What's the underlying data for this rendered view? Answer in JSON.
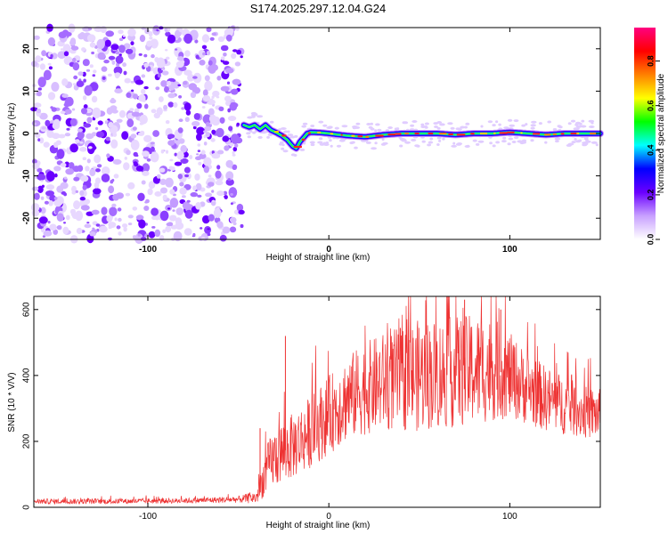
{
  "title": "S174.2025.297.12.04.G24",
  "chart_data": [
    {
      "type": "heatmap",
      "title": "S174.2025.297.12.04.G24",
      "xlabel": "Height of straight line (km)",
      "ylabel": "Frequency (Hz)",
      "xlim": [
        -163,
        150
      ],
      "ylim": [
        -25,
        25
      ],
      "xticks": [
        -100,
        0,
        100
      ],
      "yticks": [
        20,
        10,
        0,
        -10,
        -20
      ],
      "noise_region_x": [
        -163,
        -48
      ],
      "signal_track": {
        "x": [
          -47,
          -44,
          -41,
          -38,
          -35,
          -32,
          -29,
          -26,
          -23,
          -20,
          -18,
          -16,
          -14,
          -12,
          -10,
          -5,
          0,
          10,
          20,
          30,
          40,
          50,
          60,
          70,
          80,
          90,
          100,
          110,
          120,
          130,
          140,
          150
        ],
        "freq": [
          2,
          1.5,
          2,
          1,
          2,
          0.8,
          0.2,
          -0.5,
          -1.5,
          -3,
          -3.5,
          -2,
          -1,
          0,
          0.3,
          0.2,
          0,
          -0.5,
          -0.8,
          -0.3,
          0,
          0,
          0,
          -0.3,
          0,
          0,
          0.3,
          0,
          -0.3,
          0,
          0,
          0
        ]
      },
      "colorbar": {
        "label": "Normalized spectral amplitude",
        "ticks": [
          "0.8",
          "0.6",
          "0.4",
          "0.2",
          "0.0"
        ],
        "range": [
          0,
          0.95
        ],
        "colors": [
          "#ffffff",
          "#c8a0ff",
          "#6a00ff",
          "#0000ff",
          "#00ffff",
          "#00ff00",
          "#ffff00",
          "#ff8000",
          "#ff0000",
          "#ff0080"
        ]
      }
    },
    {
      "type": "line",
      "xlabel": "Height of straight line (km)",
      "ylabel": "SNR (10 * V/V)",
      "xlim": [
        -163,
        150
      ],
      "ylim": [
        0,
        640
      ],
      "xticks": [
        -100,
        0,
        100
      ],
      "yticks": [
        600,
        400,
        200,
        0
      ],
      "color": "#ee3333",
      "envelope": {
        "x": [
          -163,
          -120,
          -80,
          -50,
          -40,
          -36,
          -33,
          -30,
          -25,
          -20,
          -10,
          0,
          10,
          20,
          30,
          40,
          50,
          60,
          70,
          80,
          90,
          100,
          110,
          120,
          130,
          140,
          150
        ],
        "base": [
          18,
          18,
          20,
          24,
          30,
          90,
          130,
          150,
          170,
          185,
          230,
          280,
          330,
          360,
          380,
          390,
          400,
          405,
          410,
          415,
          420,
          400,
          360,
          330,
          310,
          290,
          280
        ],
        "amp": [
          8,
          8,
          8,
          10,
          20,
          60,
          80,
          90,
          100,
          100,
          110,
          120,
          130,
          140,
          150,
          160,
          170,
          170,
          170,
          170,
          160,
          130,
          110,
          100,
          90,
          80,
          80
        ]
      },
      "notable_spikes": [
        {
          "x": -38,
          "y": 240
        },
        {
          "x": -24,
          "y": 520
        },
        {
          "x": 75,
          "y": 630
        },
        {
          "x": 95,
          "y": 600
        }
      ]
    }
  ]
}
